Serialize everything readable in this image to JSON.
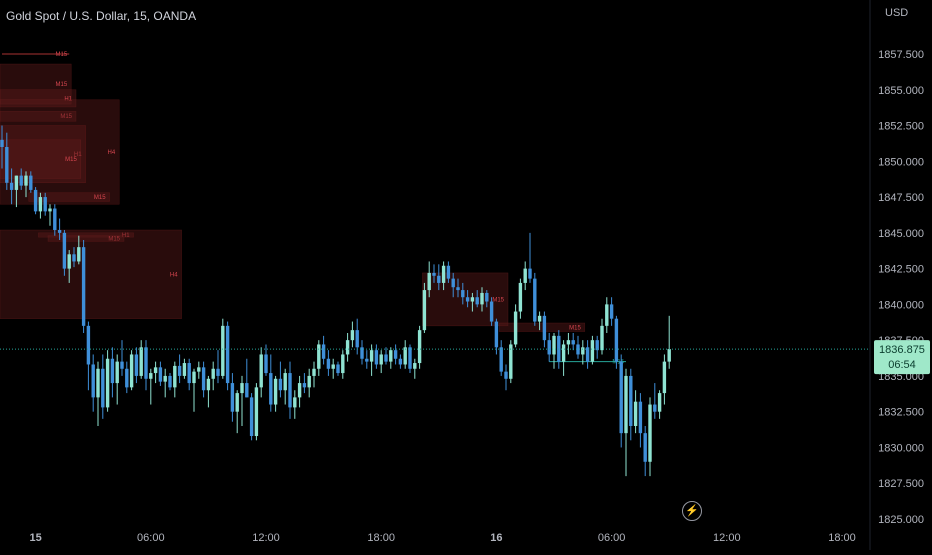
{
  "header": {
    "title": "Gold Spot / U.S. Dollar, 15, OANDA",
    "currency": "USD"
  },
  "price_badge": {
    "price": "1836.875",
    "countdown": "06:54"
  },
  "colors": {
    "background": "#000000",
    "up": "#8fe3d2",
    "down": "#3f8fd9",
    "zone_fill": "#5a1a1a",
    "zone_label": "#d6464f",
    "price_line": "#26a69a",
    "badge": "#9fe8c9"
  },
  "icons": {
    "replay": "lightning-bolt-icon"
  },
  "chart_data": {
    "type": "candlestick",
    "title": "Gold Spot / U.S. Dollar, 15, OANDA",
    "y_axis_label": "USD",
    "ylim": [
      1825.0,
      1860.0
    ],
    "y_ticks": [
      1857.5,
      1855.0,
      1852.5,
      1850.0,
      1847.5,
      1845.0,
      1842.5,
      1840.0,
      1837.5,
      1835.0,
      1832.5,
      1830.0,
      1827.5,
      1825.0
    ],
    "y_tick_labels": [
      "1857.500",
      "1855.000",
      "1852.500",
      "1850.000",
      "1847.500",
      "1845.000",
      "1842.500",
      "1840.000",
      "1837.500",
      "1835.000",
      "1832.500",
      "1830.000",
      "1827.500",
      "1825.000"
    ],
    "x_ticks": [
      {
        "label": "15",
        "index": 7,
        "bold": true
      },
      {
        "label": "06:00",
        "index": 31
      },
      {
        "label": "12:00",
        "index": 55
      },
      {
        "label": "18:00",
        "index": 79
      },
      {
        "label": "16",
        "index": 103,
        "bold": true
      },
      {
        "label": "06:00",
        "index": 127
      },
      {
        "label": "12:00",
        "index": 151
      },
      {
        "label": "18:00",
        "index": 175
      }
    ],
    "x_range": [
      0,
      190
    ],
    "current_price": 1836.875,
    "candles": [
      {
        "o": 1851.5,
        "h": 1852.5,
        "l": 1849.5,
        "c": 1851.0
      },
      {
        "o": 1851.0,
        "h": 1852.0,
        "l": 1848.0,
        "c": 1848.5
      },
      {
        "o": 1848.5,
        "h": 1849.5,
        "l": 1847.0,
        "c": 1848.0
      },
      {
        "o": 1848.0,
        "h": 1849.0,
        "l": 1846.8,
        "c": 1849.0
      },
      {
        "o": 1849.0,
        "h": 1849.5,
        "l": 1848.0,
        "c": 1848.3
      },
      {
        "o": 1848.3,
        "h": 1849.3,
        "l": 1847.5,
        "c": 1849.0
      },
      {
        "o": 1849.0,
        "h": 1849.3,
        "l": 1847.8,
        "c": 1848.0
      },
      {
        "o": 1848.0,
        "h": 1848.2,
        "l": 1846.3,
        "c": 1846.5
      },
      {
        "o": 1846.5,
        "h": 1847.8,
        "l": 1846.0,
        "c": 1847.5
      },
      {
        "o": 1847.5,
        "h": 1847.8,
        "l": 1846.2,
        "c": 1846.5
      },
      {
        "o": 1846.5,
        "h": 1847.0,
        "l": 1845.5,
        "c": 1846.7
      },
      {
        "o": 1846.7,
        "h": 1847.0,
        "l": 1844.8,
        "c": 1845.2
      },
      {
        "o": 1845.2,
        "h": 1846.0,
        "l": 1844.5,
        "c": 1845.0
      },
      {
        "o": 1845.0,
        "h": 1845.2,
        "l": 1842.0,
        "c": 1842.5
      },
      {
        "o": 1842.5,
        "h": 1843.8,
        "l": 1841.5,
        "c": 1843.5
      },
      {
        "o": 1843.5,
        "h": 1844.0,
        "l": 1842.6,
        "c": 1843.0
      },
      {
        "o": 1843.0,
        "h": 1844.8,
        "l": 1842.8,
        "c": 1844.0
      },
      {
        "o": 1844.0,
        "h": 1844.5,
        "l": 1838.0,
        "c": 1838.5
      },
      {
        "o": 1838.5,
        "h": 1838.8,
        "l": 1834.0,
        "c": 1835.8
      },
      {
        "o": 1835.8,
        "h": 1836.5,
        "l": 1832.5,
        "c": 1833.5
      },
      {
        "o": 1833.5,
        "h": 1836.0,
        "l": 1831.5,
        "c": 1835.5
      },
      {
        "o": 1835.5,
        "h": 1836.5,
        "l": 1832.0,
        "c": 1832.8
      },
      {
        "o": 1832.8,
        "h": 1836.8,
        "l": 1832.5,
        "c": 1836.2
      },
      {
        "o": 1836.2,
        "h": 1837.0,
        "l": 1833.5,
        "c": 1834.5
      },
      {
        "o": 1834.5,
        "h": 1836.5,
        "l": 1833.0,
        "c": 1836.0
      },
      {
        "o": 1836.0,
        "h": 1837.5,
        "l": 1835.0,
        "c": 1835.5
      },
      {
        "o": 1835.5,
        "h": 1836.0,
        "l": 1833.8,
        "c": 1834.2
      },
      {
        "o": 1834.2,
        "h": 1836.8,
        "l": 1834.0,
        "c": 1836.5
      },
      {
        "o": 1836.5,
        "h": 1837.0,
        "l": 1834.5,
        "c": 1835.0
      },
      {
        "o": 1835.0,
        "h": 1837.5,
        "l": 1834.8,
        "c": 1837.0
      },
      {
        "o": 1837.0,
        "h": 1837.5,
        "l": 1834.0,
        "c": 1834.8
      },
      {
        "o": 1834.8,
        "h": 1835.5,
        "l": 1833.0,
        "c": 1835.2
      },
      {
        "o": 1835.2,
        "h": 1836.0,
        "l": 1834.5,
        "c": 1835.6
      },
      {
        "o": 1835.6,
        "h": 1836.0,
        "l": 1834.3,
        "c": 1834.6
      },
      {
        "o": 1834.6,
        "h": 1835.5,
        "l": 1833.5,
        "c": 1835.0
      },
      {
        "o": 1835.0,
        "h": 1835.2,
        "l": 1834.0,
        "c": 1834.2
      },
      {
        "o": 1834.2,
        "h": 1836.0,
        "l": 1833.5,
        "c": 1835.7
      },
      {
        "o": 1835.7,
        "h": 1836.5,
        "l": 1834.5,
        "c": 1835.0
      },
      {
        "o": 1835.0,
        "h": 1836.2,
        "l": 1834.8,
        "c": 1835.9
      },
      {
        "o": 1835.9,
        "h": 1836.2,
        "l": 1834.0,
        "c": 1834.5
      },
      {
        "o": 1834.5,
        "h": 1835.5,
        "l": 1832.5,
        "c": 1835.3
      },
      {
        "o": 1835.3,
        "h": 1836.0,
        "l": 1834.8,
        "c": 1835.6
      },
      {
        "o": 1835.6,
        "h": 1836.0,
        "l": 1833.5,
        "c": 1834.0
      },
      {
        "o": 1834.0,
        "h": 1835.0,
        "l": 1832.8,
        "c": 1834.8
      },
      {
        "o": 1834.8,
        "h": 1836.0,
        "l": 1834.0,
        "c": 1835.5
      },
      {
        "o": 1835.5,
        "h": 1836.8,
        "l": 1834.5,
        "c": 1835.0
      },
      {
        "o": 1835.0,
        "h": 1839.0,
        "l": 1834.8,
        "c": 1838.5
      },
      {
        "o": 1838.5,
        "h": 1838.8,
        "l": 1834.0,
        "c": 1834.5
      },
      {
        "o": 1834.5,
        "h": 1835.2,
        "l": 1831.8,
        "c": 1832.5
      },
      {
        "o": 1832.5,
        "h": 1834.0,
        "l": 1831.0,
        "c": 1833.8
      },
      {
        "o": 1833.8,
        "h": 1835.0,
        "l": 1831.5,
        "c": 1834.5
      },
      {
        "o": 1834.5,
        "h": 1836.2,
        "l": 1833.5,
        "c": 1833.5
      },
      {
        "o": 1833.5,
        "h": 1833.8,
        "l": 1830.5,
        "c": 1830.8
      },
      {
        "o": 1830.8,
        "h": 1834.5,
        "l": 1830.5,
        "c": 1834.2
      },
      {
        "o": 1834.2,
        "h": 1837.0,
        "l": 1833.5,
        "c": 1836.5
      },
      {
        "o": 1836.5,
        "h": 1837.2,
        "l": 1835.0,
        "c": 1835.2
      },
      {
        "o": 1835.2,
        "h": 1836.5,
        "l": 1832.5,
        "c": 1833.0
      },
      {
        "o": 1833.0,
        "h": 1835.0,
        "l": 1832.5,
        "c": 1834.8
      },
      {
        "o": 1834.8,
        "h": 1836.0,
        "l": 1833.5,
        "c": 1834.0
      },
      {
        "o": 1834.0,
        "h": 1835.5,
        "l": 1833.0,
        "c": 1835.2
      },
      {
        "o": 1835.2,
        "h": 1836.0,
        "l": 1832.0,
        "c": 1832.8
      },
      {
        "o": 1832.8,
        "h": 1834.0,
        "l": 1832.0,
        "c": 1833.5
      },
      {
        "o": 1833.5,
        "h": 1835.0,
        "l": 1832.8,
        "c": 1834.5
      },
      {
        "o": 1834.5,
        "h": 1835.2,
        "l": 1833.8,
        "c": 1834.2
      },
      {
        "o": 1834.2,
        "h": 1835.5,
        "l": 1833.5,
        "c": 1835.0
      },
      {
        "o": 1835.0,
        "h": 1836.0,
        "l": 1834.2,
        "c": 1835.5
      },
      {
        "o": 1835.5,
        "h": 1837.5,
        "l": 1835.0,
        "c": 1837.2
      },
      {
        "o": 1837.2,
        "h": 1837.8,
        "l": 1835.8,
        "c": 1836.2
      },
      {
        "o": 1836.2,
        "h": 1836.8,
        "l": 1835.0,
        "c": 1835.5
      },
      {
        "o": 1835.5,
        "h": 1836.2,
        "l": 1834.8,
        "c": 1835.8
      },
      {
        "o": 1835.8,
        "h": 1836.0,
        "l": 1835.0,
        "c": 1835.2
      },
      {
        "o": 1835.2,
        "h": 1836.8,
        "l": 1834.8,
        "c": 1836.5
      },
      {
        "o": 1836.5,
        "h": 1838.0,
        "l": 1836.0,
        "c": 1837.5
      },
      {
        "o": 1837.5,
        "h": 1838.8,
        "l": 1837.0,
        "c": 1838.2
      },
      {
        "o": 1838.2,
        "h": 1839.0,
        "l": 1836.5,
        "c": 1837.0
      },
      {
        "o": 1837.0,
        "h": 1837.5,
        "l": 1835.8,
        "c": 1836.2
      },
      {
        "o": 1836.2,
        "h": 1836.8,
        "l": 1835.5,
        "c": 1836.0
      },
      {
        "o": 1836.0,
        "h": 1837.2,
        "l": 1835.0,
        "c": 1836.8
      },
      {
        "o": 1836.8,
        "h": 1837.2,
        "l": 1835.5,
        "c": 1835.8
      },
      {
        "o": 1835.8,
        "h": 1836.8,
        "l": 1835.2,
        "c": 1836.5
      },
      {
        "o": 1836.5,
        "h": 1837.0,
        "l": 1835.8,
        "c": 1836.0
      },
      {
        "o": 1836.0,
        "h": 1837.0,
        "l": 1835.5,
        "c": 1836.8
      },
      {
        "o": 1836.8,
        "h": 1837.2,
        "l": 1835.8,
        "c": 1836.2
      },
      {
        "o": 1836.2,
        "h": 1836.5,
        "l": 1835.5,
        "c": 1835.8
      },
      {
        "o": 1835.8,
        "h": 1837.5,
        "l": 1835.5,
        "c": 1837.0
      },
      {
        "o": 1837.0,
        "h": 1837.2,
        "l": 1835.2,
        "c": 1835.5
      },
      {
        "o": 1835.5,
        "h": 1836.2,
        "l": 1834.8,
        "c": 1835.9
      },
      {
        "o": 1835.9,
        "h": 1838.5,
        "l": 1835.5,
        "c": 1838.2
      },
      {
        "o": 1838.2,
        "h": 1841.5,
        "l": 1838.0,
        "c": 1841.0
      },
      {
        "o": 1841.0,
        "h": 1843.0,
        "l": 1840.5,
        "c": 1842.2
      },
      {
        "o": 1842.2,
        "h": 1842.8,
        "l": 1841.5,
        "c": 1842.0
      },
      {
        "o": 1842.0,
        "h": 1842.8,
        "l": 1841.0,
        "c": 1841.5
      },
      {
        "o": 1841.5,
        "h": 1843.0,
        "l": 1841.0,
        "c": 1842.7
      },
      {
        "o": 1842.7,
        "h": 1843.0,
        "l": 1841.5,
        "c": 1841.8
      },
      {
        "o": 1841.8,
        "h": 1842.2,
        "l": 1840.5,
        "c": 1841.2
      },
      {
        "o": 1841.2,
        "h": 1841.8,
        "l": 1840.5,
        "c": 1841.0
      },
      {
        "o": 1841.0,
        "h": 1841.5,
        "l": 1840.0,
        "c": 1840.5
      },
      {
        "o": 1840.5,
        "h": 1841.0,
        "l": 1839.8,
        "c": 1840.2
      },
      {
        "o": 1840.2,
        "h": 1840.8,
        "l": 1839.5,
        "c": 1840.5
      },
      {
        "o": 1840.5,
        "h": 1841.0,
        "l": 1839.8,
        "c": 1840.0
      },
      {
        "o": 1840.0,
        "h": 1841.2,
        "l": 1839.5,
        "c": 1840.8
      },
      {
        "o": 1840.8,
        "h": 1841.0,
        "l": 1839.8,
        "c": 1840.2
      },
      {
        "o": 1840.2,
        "h": 1840.5,
        "l": 1838.5,
        "c": 1838.8
      },
      {
        "o": 1838.8,
        "h": 1839.0,
        "l": 1836.5,
        "c": 1837.0
      },
      {
        "o": 1837.0,
        "h": 1837.5,
        "l": 1835.0,
        "c": 1835.3
      },
      {
        "o": 1835.3,
        "h": 1835.8,
        "l": 1834.0,
        "c": 1834.8
      },
      {
        "o": 1834.8,
        "h": 1837.5,
        "l": 1834.5,
        "c": 1837.2
      },
      {
        "o": 1837.2,
        "h": 1840.0,
        "l": 1837.0,
        "c": 1839.5
      },
      {
        "o": 1839.5,
        "h": 1841.8,
        "l": 1839.0,
        "c": 1841.5
      },
      {
        "o": 1841.5,
        "h": 1843.0,
        "l": 1841.0,
        "c": 1842.5
      },
      {
        "o": 1842.5,
        "h": 1845.0,
        "l": 1841.5,
        "c": 1841.8
      },
      {
        "o": 1841.8,
        "h": 1842.2,
        "l": 1838.5,
        "c": 1838.8
      },
      {
        "o": 1838.8,
        "h": 1839.5,
        "l": 1838.2,
        "c": 1839.2
      },
      {
        "o": 1839.2,
        "h": 1839.5,
        "l": 1837.0,
        "c": 1837.5
      },
      {
        "o": 1837.5,
        "h": 1838.0,
        "l": 1836.0,
        "c": 1836.5
      },
      {
        "o": 1836.5,
        "h": 1838.0,
        "l": 1835.5,
        "c": 1837.8
      },
      {
        "o": 1837.8,
        "h": 1838.2,
        "l": 1835.5,
        "c": 1836.0
      },
      {
        "o": 1836.0,
        "h": 1837.5,
        "l": 1835.0,
        "c": 1837.2
      },
      {
        "o": 1837.2,
        "h": 1838.0,
        "l": 1836.5,
        "c": 1837.5
      },
      {
        "o": 1837.5,
        "h": 1838.0,
        "l": 1836.8,
        "c": 1837.2
      },
      {
        "o": 1837.2,
        "h": 1837.8,
        "l": 1836.2,
        "c": 1836.5
      },
      {
        "o": 1836.5,
        "h": 1837.5,
        "l": 1835.8,
        "c": 1837.0
      },
      {
        "o": 1837.0,
        "h": 1837.5,
        "l": 1835.5,
        "c": 1836.0
      },
      {
        "o": 1836.0,
        "h": 1837.8,
        "l": 1835.8,
        "c": 1837.5
      },
      {
        "o": 1837.5,
        "h": 1837.8,
        "l": 1836.2,
        "c": 1836.8
      },
      {
        "o": 1836.8,
        "h": 1839.0,
        "l": 1836.5,
        "c": 1838.5
      },
      {
        "o": 1838.5,
        "h": 1840.5,
        "l": 1838.0,
        "c": 1840.0
      },
      {
        "o": 1840.0,
        "h": 1840.5,
        "l": 1838.5,
        "c": 1839.0
      },
      {
        "o": 1839.0,
        "h": 1839.2,
        "l": 1835.5,
        "c": 1836.0
      },
      {
        "o": 1836.0,
        "h": 1836.5,
        "l": 1830.0,
        "c": 1831.0
      },
      {
        "o": 1831.0,
        "h": 1835.5,
        "l": 1828.0,
        "c": 1835.0
      },
      {
        "o": 1835.0,
        "h": 1835.5,
        "l": 1830.5,
        "c": 1831.5
      },
      {
        "o": 1831.5,
        "h": 1834.0,
        "l": 1831.0,
        "c": 1833.2
      },
      {
        "o": 1833.2,
        "h": 1833.8,
        "l": 1830.0,
        "c": 1831.0
      },
      {
        "o": 1831.0,
        "h": 1831.5,
        "l": 1828.0,
        "c": 1829.0
      },
      {
        "o": 1829.0,
        "h": 1833.5,
        "l": 1828.0,
        "c": 1833.0
      },
      {
        "o": 1833.0,
        "h": 1834.5,
        "l": 1832.0,
        "c": 1832.5
      },
      {
        "o": 1832.5,
        "h": 1834.0,
        "l": 1832.0,
        "c": 1833.8
      },
      {
        "o": 1833.8,
        "h": 1836.5,
        "l": 1833.0,
        "c": 1836.0
      },
      {
        "o": 1836.0,
        "h": 1839.2,
        "l": 1835.5,
        "c": 1836.875
      }
    ],
    "zones": [
      {
        "i0": 0,
        "i1": 14,
        "y1": 1856.8,
        "y2": 1854.0,
        "label": "M15"
      },
      {
        "i0": 0,
        "i1": 15,
        "y1": 1855.0,
        "y2": 1853.8,
        "label": "H1"
      },
      {
        "i0": 0,
        "i1": 15,
        "y1": 1853.5,
        "y2": 1852.8,
        "label": "M15"
      },
      {
        "i0": 0,
        "i1": 24,
        "y1": 1854.3,
        "y2": 1847.0,
        "label": "H4"
      },
      {
        "i0": 0,
        "i1": 17,
        "y1": 1852.5,
        "y2": 1848.5,
        "label": "H1"
      },
      {
        "i0": 0,
        "i1": 16,
        "y1": 1851.5,
        "y2": 1848.8,
        "label": "M15"
      },
      {
        "i0": 6,
        "i1": 22,
        "y1": 1847.8,
        "y2": 1847.2,
        "label": "M15"
      },
      {
        "i0": 8,
        "i1": 27,
        "y1": 1845.0,
        "y2": 1844.7,
        "label": "H1"
      },
      {
        "i0": 10,
        "i1": 25,
        "y1": 1844.8,
        "y2": 1844.4,
        "label": "M15"
      },
      {
        "i0": 0,
        "i1": 37,
        "y1": 1845.2,
        "y2": 1839.0,
        "label": "H4"
      },
      {
        "i0": 88,
        "i1": 105,
        "y1": 1842.2,
        "y2": 1838.5,
        "label": "M15"
      },
      {
        "i0": 104,
        "i1": 121,
        "y1": 1838.7,
        "y2": 1838.1,
        "label": "M15"
      }
    ],
    "markers": [
      {
        "i0": 0,
        "i1": 14,
        "y": 1857.5,
        "label": "M15",
        "style": "line"
      },
      {
        "i0": 114,
        "i1": 130,
        "y": 1836.0,
        "label": "M15",
        "style": "line-teal"
      }
    ]
  }
}
